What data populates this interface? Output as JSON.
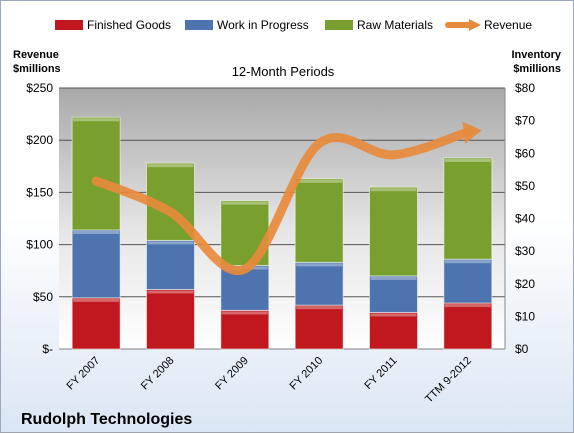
{
  "chart_data": {
    "type": "bar",
    "stacked": true,
    "title": "12-Month Periods",
    "company": "Rudolph Technologies",
    "categories": [
      "FY 2007",
      "FY 2008",
      "FY 2009",
      "FY 2010",
      "FY 2011",
      "TTM 9-2012"
    ],
    "series": [
      {
        "name": "Finished Goods",
        "axis": "left",
        "color": "#c0181e",
        "values": [
          49,
          57,
          37,
          42,
          35,
          44
        ]
      },
      {
        "name": "Work in Progress",
        "axis": "left",
        "color": "#4d74ae",
        "values": [
          65,
          47,
          43,
          41,
          35,
          42
        ]
      },
      {
        "name": "Raw Materials",
        "axis": "left",
        "color": "#79a02f",
        "values": [
          108,
          74,
          62,
          80,
          85,
          97
        ]
      }
    ],
    "line_series": {
      "name": "Revenue",
      "axis": "right",
      "color": "#e88a3c",
      "smooth": true,
      "values": [
        51.5,
        42,
        24.5,
        63,
        59.5,
        66.5
      ]
    },
    "y_left": {
      "label_line1": "Revenue",
      "label_line2": "$millions",
      "ylim": [
        0,
        250
      ],
      "ticks": [
        0,
        50,
        100,
        150,
        200,
        250
      ],
      "tick_labels": [
        "$-",
        "$50",
        "$100",
        "$150",
        "$200",
        "$250"
      ]
    },
    "y_right": {
      "label_line1": "Inventory",
      "label_line2": "$millions",
      "ylim": [
        0,
        80
      ],
      "ticks": [
        0,
        10,
        20,
        30,
        40,
        50,
        60,
        70,
        80
      ],
      "tick_labels": [
        "$0",
        "$10",
        "$20",
        "$30",
        "$40",
        "$50",
        "$60",
        "$70",
        "$80"
      ]
    },
    "grid": true,
    "legend_position": "top"
  }
}
